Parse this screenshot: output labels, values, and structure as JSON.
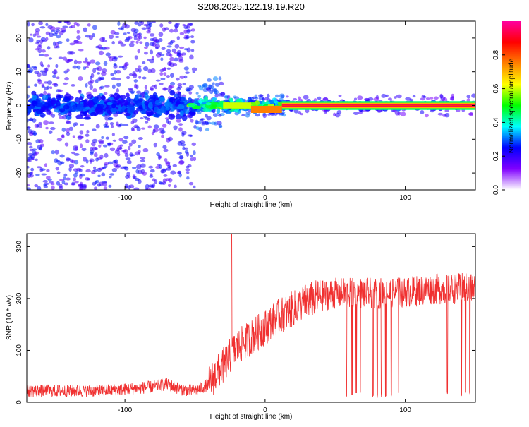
{
  "title": "S208.2025.122.19.19.R20",
  "chart_data": [
    {
      "type": "heatmap",
      "xlabel": "Height of straight line (km)",
      "ylabel": "Frequency (Hz)",
      "xlim": [
        -170,
        150
      ],
      "ylim": [
        -25,
        25
      ],
      "xticks": [
        -100,
        0,
        100
      ],
      "yticks": [
        -20,
        -10,
        0,
        10,
        20
      ],
      "colorbar": {
        "label": "Normalized spectral amplitude",
        "range": [
          0,
          1
        ],
        "ticks": [
          "0.0",
          "0.2",
          "0.4",
          "0.6",
          "0.8"
        ],
        "tick_values": [
          0,
          0.2,
          0.4,
          0.6,
          0.8
        ],
        "colors": [
          "#ffffff",
          "#8000ff",
          "#0000ff",
          "#00ffff",
          "#00ff00",
          "#ffff00",
          "#ff8000",
          "#ff0000",
          "#ff00a0"
        ]
      },
      "regions": [
        {
          "x_range": [
            -170,
            -50
          ],
          "description_value": "broadband scatter up to ±25 Hz, dense band ±5 Hz"
        },
        {
          "x_range": [
            -50,
            15
          ],
          "description_value": "narrowing band around 0 Hz"
        },
        {
          "x_range": [
            15,
            150
          ],
          "description_value": "strong narrow line at ~0 Hz"
        }
      ]
    },
    {
      "type": "line",
      "xlabel": "Height of straight line (km)",
      "ylabel": "SNR (10 * v/v)",
      "xlim": [
        -170,
        150
      ],
      "ylim": [
        0,
        325
      ],
      "xticks": [
        -100,
        0,
        100
      ],
      "yticks": [
        0,
        100,
        200,
        300
      ],
      "color": "#f03030",
      "envelope": [
        [
          -170,
          22
        ],
        [
          -120,
          22
        ],
        [
          -100,
          25
        ],
        [
          -80,
          30
        ],
        [
          -70,
          35
        ],
        [
          -60,
          25
        ],
        [
          -50,
          22
        ],
        [
          -40,
          35
        ],
        [
          -35,
          55
        ],
        [
          -30,
          70
        ],
        [
          -25,
          90
        ],
        [
          -20,
          105
        ],
        [
          -10,
          125
        ],
        [
          0,
          145
        ],
        [
          10,
          165
        ],
        [
          20,
          180
        ],
        [
          30,
          195
        ],
        [
          40,
          205
        ],
        [
          50,
          210
        ],
        [
          60,
          210
        ],
        [
          80,
          210
        ],
        [
          100,
          212
        ],
        [
          120,
          218
        ],
        [
          150,
          220
        ]
      ],
      "spike": {
        "x": -24,
        "y": 325
      },
      "dropouts": [
        58,
        62,
        65,
        68,
        77,
        80,
        83,
        86,
        90,
        95,
        130,
        140,
        143,
        146
      ]
    }
  ]
}
